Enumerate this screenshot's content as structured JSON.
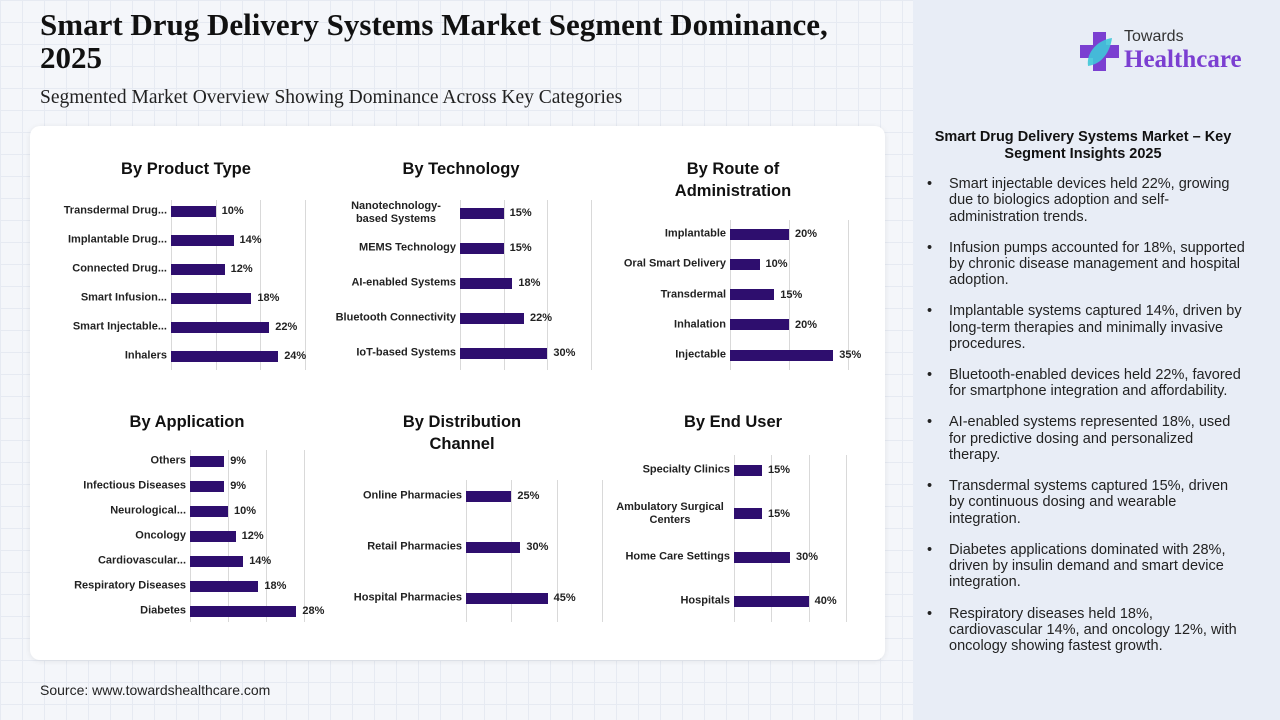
{
  "header": {
    "title": "Smart Drug Delivery Systems Market Segment Dominance, 2025",
    "subtitle": "Segmented Market Overview Showing Dominance Across Key Categories"
  },
  "logo": {
    "line1": "Towards",
    "line2": "Healthcare"
  },
  "source": "Source: www.towardshealthcare.com",
  "sidebar": {
    "title": "Smart Drug Delivery Systems Market – Key Segment Insights 2025",
    "bullets": [
      "Smart injectable devices held 22%, growing due to biologics adoption and self-administration trends.",
      "Infusion pumps accounted for 18%, supported by chronic disease management and hospital adoption.",
      "Implantable systems captured 14%, driven by long-term therapies and minimally invasive procedures.",
      "Bluetooth-enabled devices held 22%, favored for smartphone integration and affordability.",
      "AI-enabled systems represented 18%, used for predictive dosing and personalized therapy.",
      "Transdermal systems captured 15%, driven by continuous dosing and wearable integration.",
      "Diabetes applications dominated with 28%, driven by insulin demand and smart device integration.",
      "Respiratory diseases held 18%, cardiovascular 14%, and oncology 12%, with oncology showing fastest growth."
    ]
  },
  "colors": {
    "bar": "#2e0e6e",
    "accent": "#7b3fd1"
  },
  "chart_data": [
    {
      "type": "bar",
      "title": "By Product Type",
      "categories": [
        "Transdermal Drug...",
        "Implantable Drug...",
        "Connected Drug...",
        "Smart Infusion...",
        "Smart Injectable...",
        "Inhalers"
      ],
      "values": [
        10,
        14,
        12,
        18,
        22,
        24
      ],
      "xlim": [
        0,
        30
      ],
      "grid_step": 10,
      "unit": "%"
    },
    {
      "type": "bar",
      "title": "By Technology",
      "categories": [
        "Nanotechnology-based Systems",
        "MEMS Technology",
        "AI-enabled Systems",
        "Bluetooth Connectivity",
        "IoT-based Systems"
      ],
      "values": [
        15,
        15,
        18,
        22,
        30
      ],
      "xlim": [
        0,
        45
      ],
      "grid_step": 15,
      "unit": "%"
    },
    {
      "type": "bar",
      "title": "By Route of Administration",
      "categories": [
        "Implantable",
        "Oral Smart Delivery",
        "Transdermal",
        "Inhalation",
        "Injectable"
      ],
      "values": [
        20,
        10,
        15,
        20,
        35
      ],
      "xlim": [
        0,
        40
      ],
      "grid_step": 20,
      "unit": "%"
    },
    {
      "type": "bar",
      "title": "By Application",
      "categories": [
        "Others",
        "Infectious Diseases",
        "Neurological...",
        "Oncology",
        "Cardiovascular...",
        "Respiratory Diseases",
        "Diabetes"
      ],
      "values": [
        9,
        9,
        10,
        12,
        14,
        18,
        28
      ],
      "xlim": [
        0,
        30
      ],
      "grid_step": 10,
      "unit": "%"
    },
    {
      "type": "bar",
      "title": "By Distribution Channel",
      "categories": [
        "Online Pharmacies",
        "Retail Pharmacies",
        "Hospital Pharmacies"
      ],
      "values": [
        25,
        30,
        45
      ],
      "xlim": [
        0,
        75
      ],
      "grid_step": 25,
      "unit": "%"
    },
    {
      "type": "bar",
      "title": "By End User",
      "categories": [
        "Specialty Clinics",
        "Ambulatory Surgical Centers",
        "Home Care Settings",
        "Hospitals"
      ],
      "values": [
        15,
        15,
        30,
        40
      ],
      "xlim": [
        0,
        60
      ],
      "grid_step": 20,
      "unit": "%"
    }
  ]
}
